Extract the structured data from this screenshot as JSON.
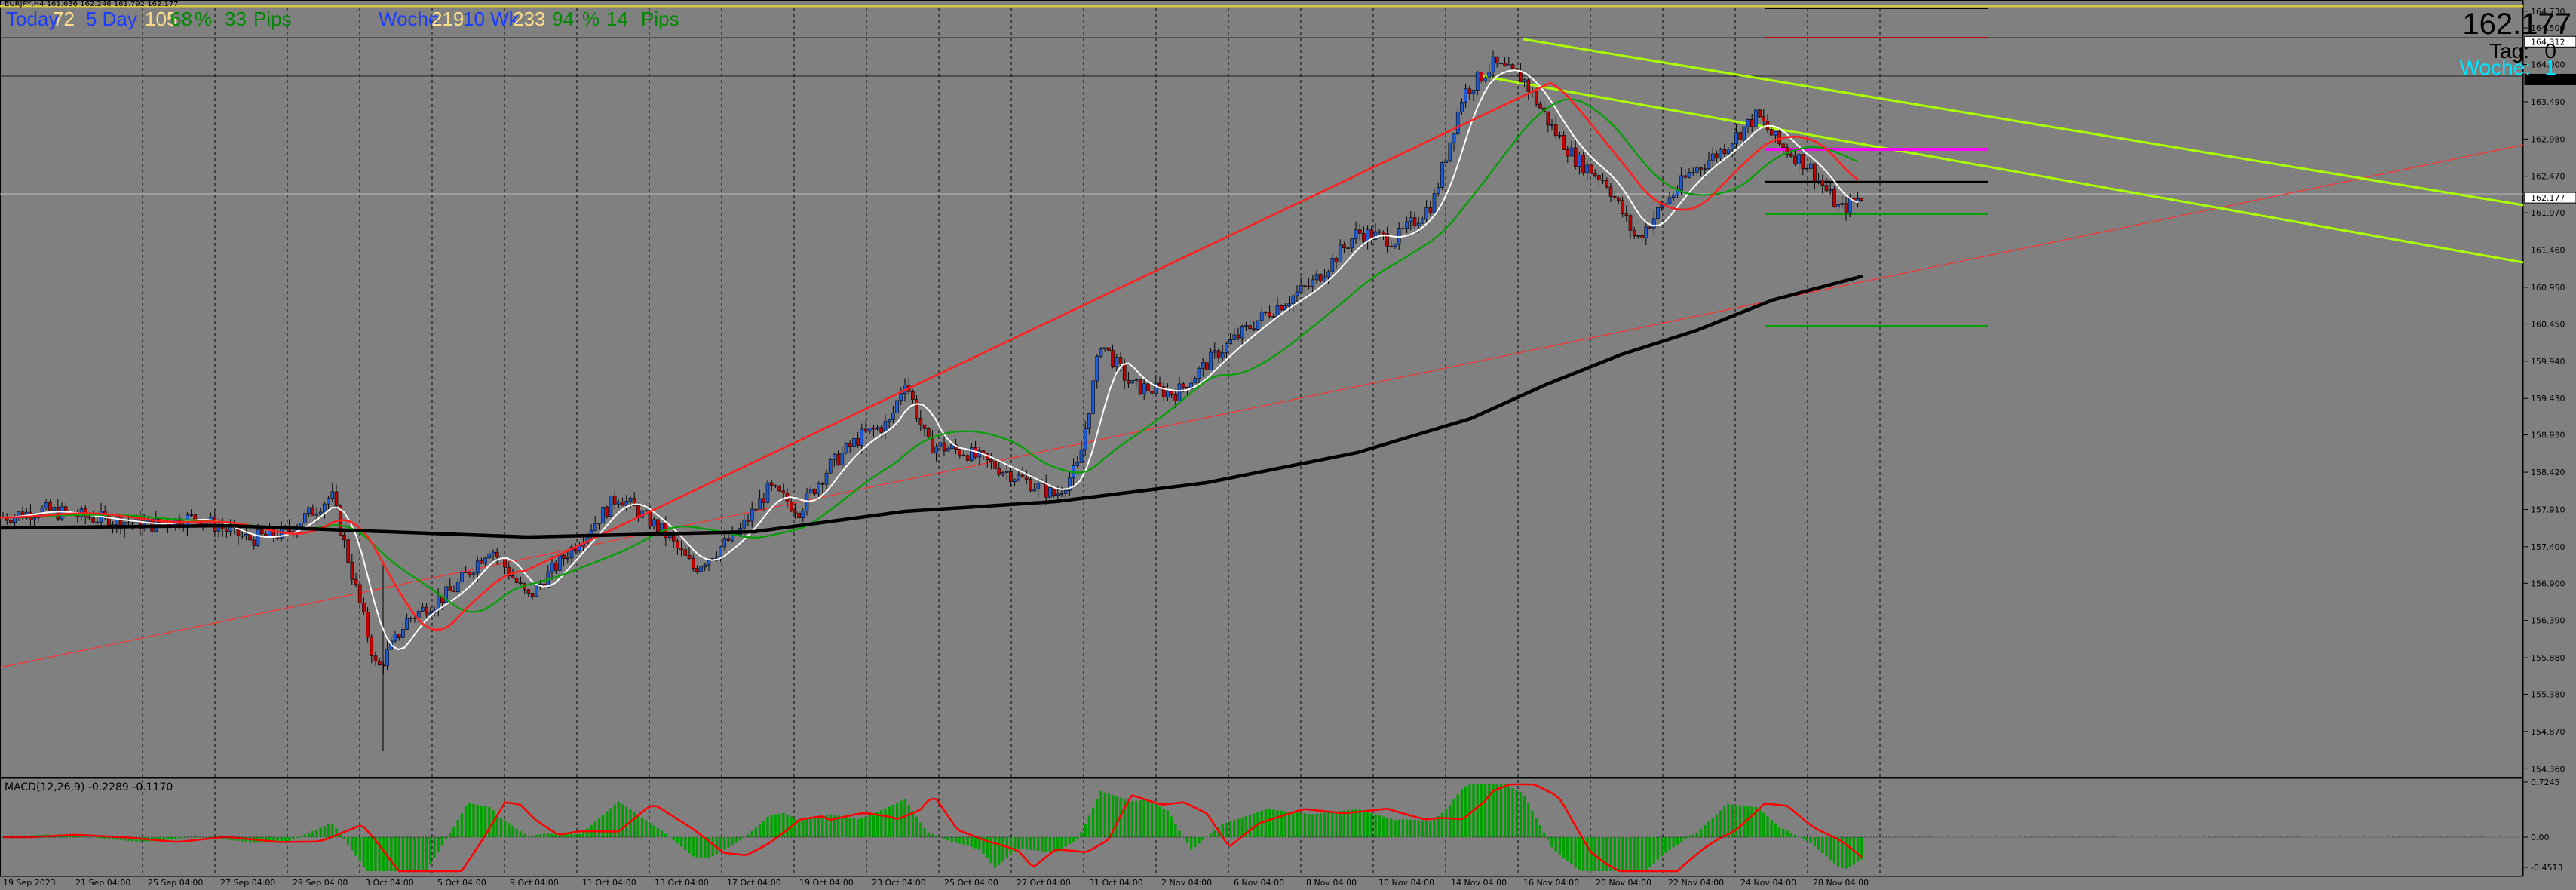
{
  "window": {
    "symbol_info": "EURJPY,H4 161.636 162.246 161.792 162.177"
  },
  "header_left": {
    "today_label": "Today",
    "today_val": "72",
    "five_day_label": "5 Day",
    "five_day_val": "105",
    "pct_val": "68",
    "pct_sym": "%",
    "pips_val": "33",
    "pips_label": "Pips",
    "woche_label": "Woche",
    "woche_val": "219",
    "ten_wk_label": "10 Wk",
    "ten_wk_val": "233",
    "pct2_val": "94",
    "pct2_sym": "%",
    "pips2_val": "14",
    "pips2_label": "Pips"
  },
  "header_right": {
    "price": "162.177",
    "tag_label": "Tag:",
    "tag_val": "0",
    "woche_label": "Woche:",
    "woche_val": "1"
  },
  "macd_label": "MACD(12,26,9) -0.2289 -0.1170",
  "price_axis": [
    "164.730",
    "164.500",
    "164.000",
    "163.490",
    "162.980",
    "162.470",
    "161.970",
    "161.460",
    "160.950",
    "160.450",
    "159.940",
    "159.430",
    "158.930",
    "158.420",
    "157.910",
    "157.400",
    "156.900",
    "156.390",
    "155.880",
    "155.380",
    "154.870",
    "154.360"
  ],
  "price_axis_markers": {
    "top": "164.730",
    "level2": "164.312",
    "level3": "163.794",
    "current": "162.177"
  },
  "macd_axis": [
    "0.7245",
    "0.00",
    "-0.4513"
  ],
  "time_axis": [
    "19 Sep 2023",
    "21 Sep 04:00",
    "25 Sep 04:00",
    "27 Sep 04:00",
    "29 Sep 04:00",
    "3 Oct 04:00",
    "5 Oct 04:00",
    "9 Oct 04:00",
    "11 Oct 04:00",
    "13 Oct 04:00",
    "17 Oct 04:00",
    "19 Oct 04:00",
    "23 Oct 04:00",
    "25 Oct 04:00",
    "27 Oct 04:00",
    "31 Oct 04:00",
    "2 Nov 04:00",
    "6 Nov 04:00",
    "8 Nov 04:00",
    "10 Nov 04:00",
    "14 Nov 04:00",
    "16 Nov 04:00",
    "20 Nov 04:00",
    "22 Nov 04:00",
    "24 Nov 04:00",
    "28 Nov 04:00"
  ],
  "colors": {
    "background": "#808080",
    "bull_candle": "#1e5bd6",
    "bear_candle": "#c40000",
    "ma_white": "#ffffff",
    "ma_red": "#ff2020",
    "ma_green": "#00a000",
    "ma_black": "#000000",
    "trend_yellowgreen": "#aaff00",
    "trend_red": "#ff3030",
    "macd_hist": "#00a000",
    "macd_signal": "#ff0000",
    "pivot_magenta": "#ff00ff"
  }
}
